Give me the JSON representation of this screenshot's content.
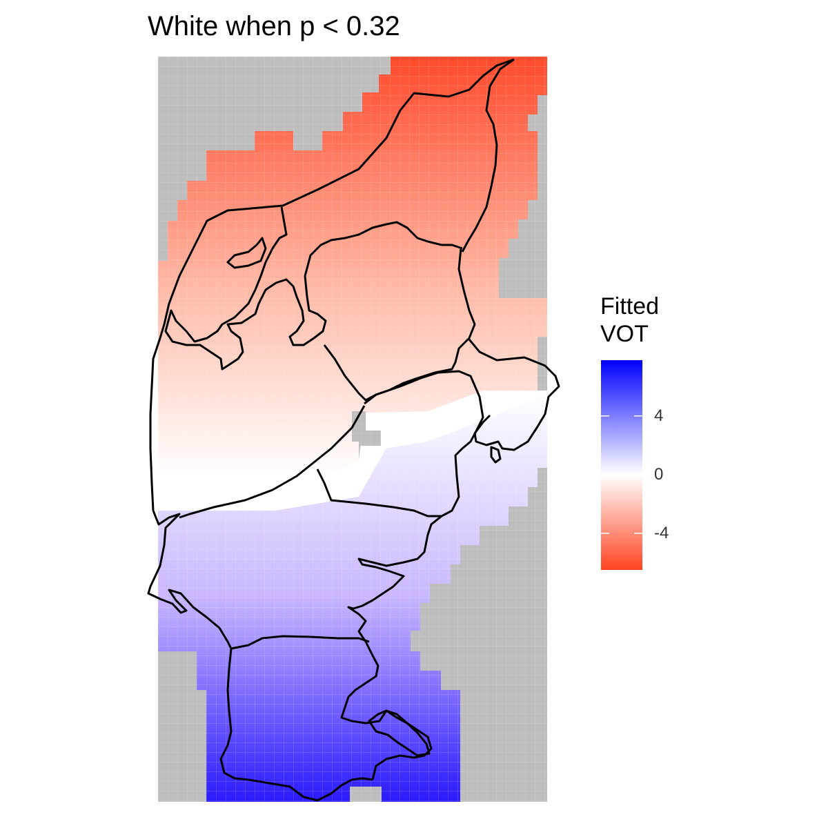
{
  "title": "White when p < 0.32",
  "legend": {
    "title_line1": "Fitted",
    "title_line2": "VOT",
    "ticks": [
      {
        "value": 4,
        "label": "4"
      },
      {
        "value": 0,
        "label": "0"
      },
      {
        "value": -4,
        "label": "-4"
      }
    ],
    "range": [
      -6.5,
      7.8
    ]
  },
  "colors": {
    "low": "#ff4422",
    "mid": "#ffffff",
    "high": "#0000ff",
    "na_fill": "#bebebe",
    "outline": "#000000"
  }
}
